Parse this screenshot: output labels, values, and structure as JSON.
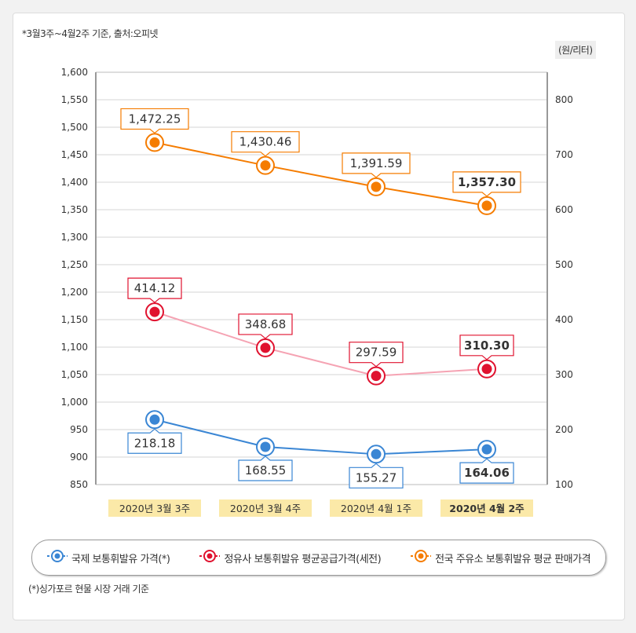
{
  "note": "*3월3주~4월2주 기준, 출처:오피넷",
  "unit": "(원/리터)",
  "footnote": "(*)싱가포르 현물 시장 거래 기준",
  "chart_data": {
    "type": "line",
    "categories": [
      "2020년 3월 3주",
      "2020년 3월 4주",
      "2020년 4월 1주",
      "2020년 4월 2주"
    ],
    "left_axis": {
      "range": [
        850,
        1600
      ],
      "step": 50,
      "ticks": [
        "850",
        "900",
        "950",
        "1,000",
        "1,050",
        "1,100",
        "1,150",
        "1,200",
        "1,250",
        "1,300",
        "1,350",
        "1,400",
        "1,450",
        "1,500",
        "1,550",
        "1,600"
      ]
    },
    "right_axis": {
      "range": [
        100,
        800
      ],
      "step": 100,
      "ticks": [
        "100",
        "200",
        "300",
        "400",
        "500",
        "600",
        "700",
        "800"
      ]
    },
    "grid": true,
    "legend_placement": "bottom",
    "series": [
      {
        "name": "국제 보통휘발유 가격(*)",
        "axis": "right",
        "color": "#3a86d4",
        "line_color": "#3a86d4",
        "values": [
          218.18,
          168.55,
          155.27,
          164.06
        ],
        "labels": [
          "218.18",
          "168.55",
          "155.27",
          "164.06"
        ],
        "label_position": "below"
      },
      {
        "name": "정유사 보통휘발유 평균공급가격(세전)",
        "axis": "right",
        "color": "#e0122f",
        "line_color": "#f5a3b3",
        "values": [
          414.12,
          348.68,
          297.59,
          310.3
        ],
        "labels": [
          "414.12",
          "348.68",
          "297.59",
          "310.30"
        ],
        "label_position": "above"
      },
      {
        "name": "전국 주유소 보통휘발유 평균 판매가격",
        "axis": "left",
        "color": "#f57c00",
        "line_color": "#f57c00",
        "values": [
          1472.25,
          1430.46,
          1391.59,
          1357.3
        ],
        "labels": [
          "1,472.25",
          "1,430.46",
          "1,391.59",
          "1,357.30"
        ],
        "label_position": "above"
      }
    ]
  }
}
